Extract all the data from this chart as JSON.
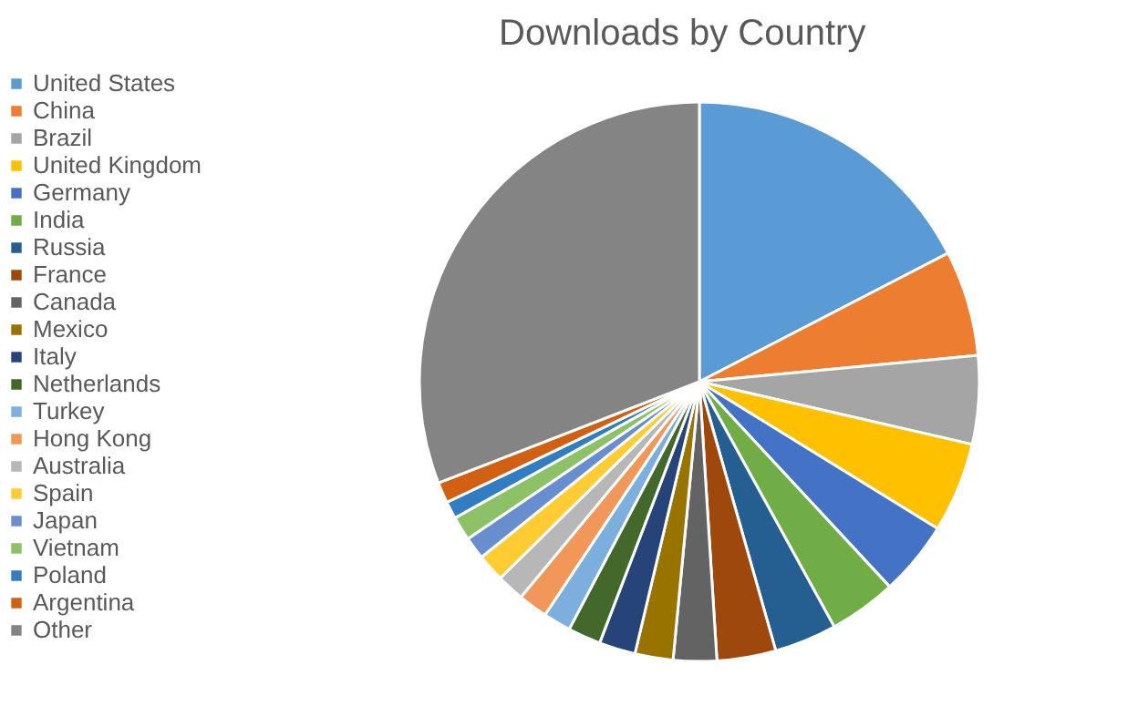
{
  "chart_data": {
    "type": "pie",
    "title": "Downloads by Country",
    "categories": [
      "United States",
      "China",
      "Brazil",
      "United Kingdom",
      "Germany",
      "India",
      "Russia",
      "France",
      "Canada",
      "Mexico",
      "Italy",
      "Netherlands",
      "Turkey",
      "Hong Kong",
      "Australia",
      "Spain",
      "Japan",
      "Vietnam",
      "Poland",
      "Argentina",
      "Other"
    ],
    "values": [
      17.4,
      6.1,
      5.1,
      5.2,
      4.3,
      3.9,
      3.6,
      3.4,
      2.5,
      2.2,
      2.1,
      1.9,
      1.6,
      1.7,
      1.6,
      1.6,
      1.3,
      1.4,
      1.0,
      1.2,
      30.9
    ],
    "colors": [
      "#5b9bd5",
      "#ed7d31",
      "#a5a5a5",
      "#ffc000",
      "#4472c4",
      "#70ad47",
      "#255e91",
      "#9e480e",
      "#636363",
      "#997300",
      "#264478",
      "#43682b",
      "#7cafdd",
      "#f1975a",
      "#b7b7b7",
      "#ffcd33",
      "#698ed0",
      "#8cc168",
      "#327dc2",
      "#d26012",
      "#848484"
    ],
    "legend": "left"
  }
}
